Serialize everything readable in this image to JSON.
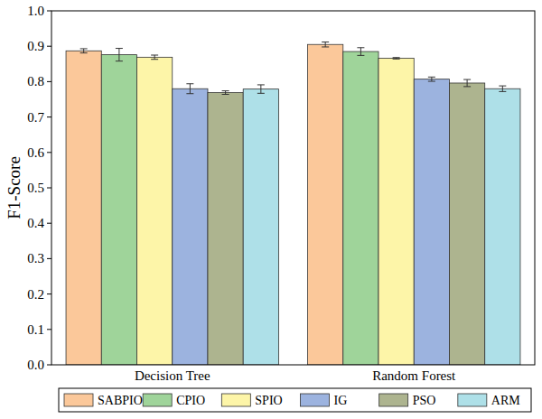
{
  "chart_data": {
    "type": "bar",
    "y_label": "F1-Score",
    "categories": [
      "Decision Tree",
      "Random Forest"
    ],
    "series": [
      {
        "name": "SABPIO",
        "color": "#fbc89a",
        "values": [
          0.887,
          0.905
        ],
        "errors": [
          0.006,
          0.007
        ]
      },
      {
        "name": "CPIO",
        "color": "#9fd49a",
        "values": [
          0.876,
          0.885
        ],
        "errors": [
          0.018,
          0.011
        ]
      },
      {
        "name": "SPIO",
        "color": "#fdf5a8",
        "values": [
          0.869,
          0.866
        ],
        "errors": [
          0.006,
          0.002
        ]
      },
      {
        "name": "IG",
        "color": "#9cb3df",
        "values": [
          0.78,
          0.807
        ],
        "errors": [
          0.014,
          0.006
        ]
      },
      {
        "name": "PSO",
        "color": "#adb48f",
        "values": [
          0.769,
          0.796
        ],
        "errors": [
          0.005,
          0.01
        ]
      },
      {
        "name": "ARM",
        "color": "#aee0e8",
        "values": [
          0.779,
          0.78
        ],
        "errors": [
          0.012,
          0.008
        ]
      }
    ],
    "ylim": [
      0,
      1
    ],
    "yticks": [
      {
        "value": 0,
        "label": "0.0"
      },
      0.1,
      0.2,
      0.3,
      0.4,
      0.5,
      0.6,
      0.7,
      0.8,
      0.9,
      {
        "value": 1,
        "label": "1.0"
      }
    ],
    "grid": false,
    "legend": "bottom"
  }
}
